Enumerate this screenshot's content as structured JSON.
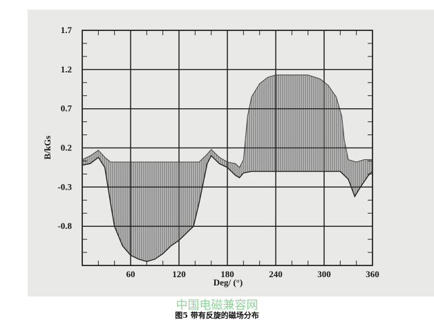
{
  "chart_data": {
    "type": "area",
    "title": "",
    "xlabel": "Deg/ (°)",
    "ylabel": "B/kGs",
    "xlim": [
      0,
      360
    ],
    "ylim": [
      -1.3,
      1.7
    ],
    "x_ticks": [
      "60",
      "120",
      "180",
      "240",
      "300",
      "360"
    ],
    "y_ticks": [
      "1.7",
      "1.2",
      "0.7",
      "0.2",
      "-0.3",
      "-0.8"
    ],
    "grid": true,
    "legend": "none",
    "band_color": "#555555",
    "series": [
      {
        "role": "upper envelope",
        "x": [
          0,
          10,
          20,
          28,
          35,
          145,
          155,
          160,
          170,
          180,
          190,
          195,
          200,
          205,
          210,
          220,
          230,
          240,
          280,
          295,
          305,
          315,
          322,
          325,
          330,
          340,
          350,
          360
        ],
        "y": [
          0.05,
          0.1,
          0.17,
          0.08,
          0.02,
          0.02,
          0.12,
          0.18,
          0.08,
          0.02,
          0.0,
          -0.05,
          0.05,
          0.6,
          0.85,
          1.02,
          1.1,
          1.13,
          1.13,
          1.08,
          1.0,
          0.85,
          0.6,
          0.3,
          0.05,
          0.02,
          0.05,
          0.05
        ]
      },
      {
        "role": "lower envelope",
        "x": [
          0,
          10,
          20,
          28,
          35,
          40,
          50,
          60,
          70,
          80,
          90,
          100,
          110,
          120,
          130,
          138,
          145,
          150,
          155,
          160,
          170,
          180,
          190,
          195,
          200,
          210,
          320,
          330,
          338,
          345,
          355,
          360
        ],
        "y": [
          -0.02,
          0.0,
          0.08,
          -0.05,
          -0.5,
          -0.8,
          -1.05,
          -1.17,
          -1.22,
          -1.25,
          -1.22,
          -1.15,
          -1.05,
          -0.98,
          -0.88,
          -0.8,
          -0.5,
          -0.25,
          0.0,
          0.1,
          0.0,
          -0.05,
          -0.15,
          -0.18,
          -0.12,
          -0.1,
          -0.1,
          -0.2,
          -0.42,
          -0.3,
          -0.15,
          -0.1
        ]
      }
    ]
  },
  "watermark": "中国电磁兼容网",
  "caption": "图5  带有反旋的磁场分布"
}
